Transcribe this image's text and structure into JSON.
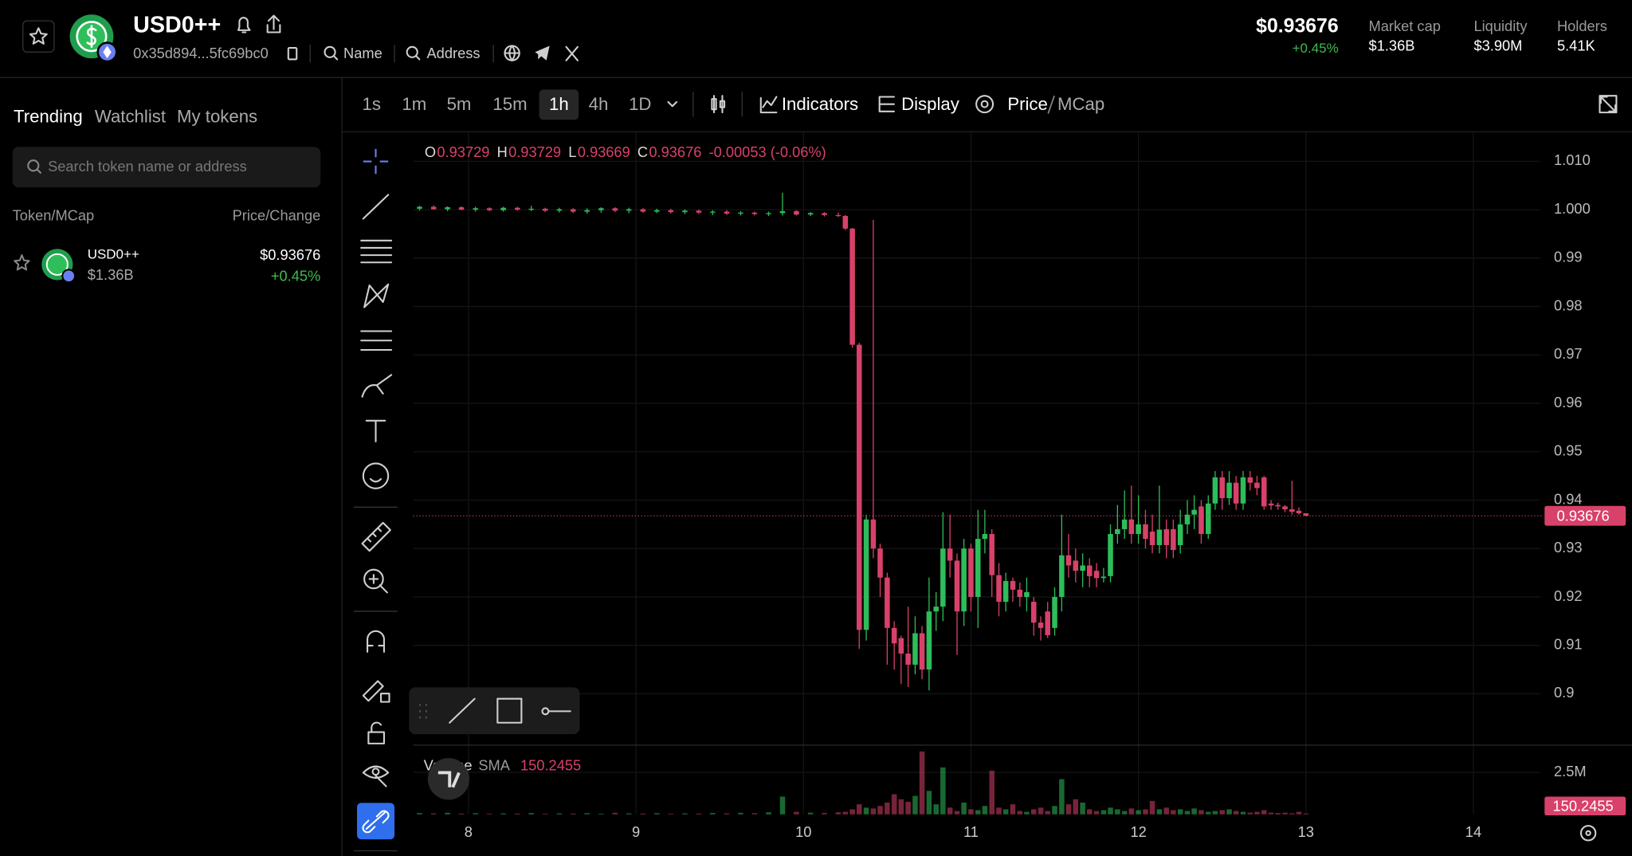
{
  "header": {
    "title": "USD0++",
    "address": "0x35d894...5fc69bc0",
    "links": [
      "Name",
      "Address"
    ],
    "price": "$0.93676",
    "change": "+0.45%",
    "stats": [
      {
        "label": "Market cap",
        "value": "$1.36B"
      },
      {
        "label": "Liquidity",
        "value": "$3.90M"
      },
      {
        "label": "Holders",
        "value": "5.41K"
      }
    ]
  },
  "sidebar": {
    "tabs": [
      "Trending",
      "Watchlist",
      "My tokens"
    ],
    "search_placeholder": "Search token name or address",
    "columns": [
      "Token/MCap",
      "Price/Change"
    ],
    "rows": [
      {
        "name": "USD0++",
        "mcap": "$1.36B",
        "price": "$0.93676",
        "change": "+0.45%"
      }
    ]
  },
  "toolbar": {
    "intervals": [
      "1s",
      "1m",
      "5m",
      "15m",
      "1h",
      "4h",
      "1D"
    ],
    "buttons": [
      "Indicators",
      "Display"
    ],
    "price_mode": [
      "Price",
      "MCap"
    ]
  },
  "chart_data": {
    "type": "candlestick",
    "up_color": "#2dbd5a",
    "down_color": "#d8416a",
    "grid": true,
    "xlim": [
      7.67,
      14.4
    ],
    "xticks": [
      8,
      9,
      10,
      11,
      12,
      13,
      14
    ],
    "ylim": [
      0.8895,
      1.016
    ],
    "yticks": [
      {
        "value": 1.01,
        "label": "1.010"
      },
      {
        "value": 1,
        "label": "1.000"
      },
      0.99,
      0.98,
      0.97,
      0.96,
      0.95,
      0.94,
      0.93,
      0.92,
      0.91,
      0.9
    ],
    "volume_ylim": [
      0,
      4100000
    ],
    "volume_yticks": [
      {
        "value": 2500000,
        "label": "2.5M"
      }
    ],
    "legend": {
      "labels": [
        "O",
        "H",
        "L",
        "C"
      ],
      "values": [
        0.93729,
        0.93729,
        0.93669,
        0.93676
      ],
      "change": "-0.00053 (-0.06%)"
    },
    "volume_legend": {
      "name": "Volume",
      "indicator": "SMA",
      "value": 150.2455
    },
    "last_price": 0.93676,
    "x": [
      7.708,
      7.792,
      7.875,
      7.958,
      8.042,
      8.125,
      8.208,
      8.292,
      8.375,
      8.458,
      8.542,
      8.625,
      8.708,
      8.792,
      8.875,
      8.958,
      9.042,
      9.125,
      9.208,
      9.292,
      9.375,
      9.458,
      9.542,
      9.625,
      9.708,
      9.792,
      9.875,
      9.958,
      10.042,
      10.125,
      10.208,
      10.25,
      10.292,
      10.333,
      10.375,
      10.417,
      10.458,
      10.5,
      10.542,
      10.583,
      10.625,
      10.667,
      10.708,
      10.75,
      10.792,
      10.833,
      10.875,
      10.917,
      10.958,
      11.0,
      11.042,
      11.083,
      11.125,
      11.167,
      11.208,
      11.25,
      11.292,
      11.333,
      11.375,
      11.417,
      11.458,
      11.5,
      11.542,
      11.583,
      11.625,
      11.667,
      11.708,
      11.75,
      11.792,
      11.833,
      11.875,
      11.917,
      11.958,
      12.0,
      12.042,
      12.083,
      12.125,
      12.167,
      12.208,
      12.25,
      12.292,
      12.333,
      12.375,
      12.417,
      12.458,
      12.5,
      12.542,
      12.583,
      12.625,
      12.667,
      12.708,
      12.75,
      12.792,
      12.833,
      12.875,
      12.917,
      12.958,
      13.0
    ],
    "open": [
      1.0002,
      1.0006,
      1.0001,
      1.0005,
      1.0,
      1.0003,
      0.9999,
      1.0004,
      1.0,
      1.0002,
      0.9998,
      1.0001,
      0.9996,
      0.9999,
      1.0003,
      0.9998,
      1.0001,
      0.9996,
      0.9999,
      0.9995,
      0.9998,
      0.9994,
      0.9996,
      0.9992,
      0.9994,
      0.9991,
      0.9993,
      0.9997,
      0.999,
      0.9993,
      0.9989,
      0.9987,
      0.9961,
      0.9721,
      0.9132,
      0.936,
      0.93,
      0.924,
      0.9136,
      0.9115,
      0.9083,
      0.906,
      0.9125,
      0.905,
      0.917,
      0.918,
      0.93,
      0.9275,
      0.917,
      0.93,
      0.92,
      0.932,
      0.933,
      0.9245,
      0.919,
      0.9233,
      0.9215,
      0.92,
      0.919,
      0.9147,
      0.917,
      0.9136,
      0.92,
      0.9286,
      0.9275,
      0.9254,
      0.9265,
      0.9254,
      0.9239,
      0.9243,
      0.933,
      0.934,
      0.936,
      0.933,
      0.935,
      0.9335,
      0.9307,
      0.934,
      0.934,
      0.9307,
      0.935,
      0.937,
      0.9387,
      0.933,
      0.9393,
      0.9447,
      0.9404,
      0.9436,
      0.9393,
      0.9447,
      0.9436,
      0.9447,
      0.9393,
      0.939,
      0.9387,
      0.9381,
      0.9378,
      0.93729
    ],
    "high": [
      1.0008,
      1.0009,
      1.0007,
      1.0007,
      1.0006,
      1.0005,
      1.0006,
      1.0006,
      1.0008,
      1.0004,
      1.0004,
      1.0003,
      1.0003,
      1.0005,
      1.0005,
      1.0004,
      1.0003,
      1.0002,
      1.0002,
      1.0001,
      1.0,
      0.9999,
      0.9999,
      0.9997,
      0.9996,
      0.9996,
      1.0035,
      0.9999,
      0.9995,
      0.9995,
      0.9994,
      0.9989,
      0.9962,
      0.9725,
      0.937,
      0.9979,
      0.931,
      0.925,
      0.915,
      0.912,
      0.918,
      0.916,
      0.914,
      0.924,
      0.921,
      0.9375,
      0.937,
      0.929,
      0.932,
      0.931,
      0.938,
      0.938,
      0.934,
      0.927,
      0.925,
      0.924,
      0.923,
      0.924,
      0.92,
      0.916,
      0.919,
      0.922,
      0.937,
      0.933,
      0.93,
      0.929,
      0.928,
      0.927,
      0.926,
      0.935,
      0.939,
      0.942,
      0.943,
      0.941,
      0.938,
      0.937,
      0.943,
      0.936,
      0.936,
      0.938,
      0.94,
      0.941,
      0.94,
      0.941,
      0.946,
      0.946,
      0.946,
      0.945,
      0.946,
      0.946,
      0.945,
      0.945,
      0.94,
      0.9395,
      0.939,
      0.944,
      0.9385,
      0.93729
    ],
    "low": [
      0.9998,
      1.0,
      0.9997,
      0.9999,
      0.9996,
      0.9997,
      0.9996,
      0.9998,
      0.9997,
      0.9995,
      0.9994,
      0.9993,
      0.9992,
      0.9994,
      0.9995,
      0.9993,
      0.9994,
      0.9993,
      0.9992,
      0.9991,
      0.9991,
      0.9989,
      0.9989,
      0.9988,
      0.9988,
      0.9987,
      0.9988,
      0.9988,
      0.9987,
      0.9986,
      0.9985,
      0.9958,
      0.9715,
      0.9093,
      0.911,
      0.928,
      0.92,
      0.906,
      0.905,
      0.902,
      0.9014,
      0.904,
      0.903,
      0.9007,
      0.913,
      0.915,
      0.924,
      0.908,
      0.914,
      0.917,
      0.9136,
      0.929,
      0.92,
      0.916,
      0.917,
      0.919,
      0.918,
      0.917,
      0.912,
      0.911,
      0.9115,
      0.912,
      0.917,
      0.924,
      0.923,
      0.922,
      0.922,
      0.922,
      0.923,
      0.923,
      0.931,
      0.932,
      0.931,
      0.931,
      0.93,
      0.929,
      0.929,
      0.928,
      0.928,
      0.929,
      0.933,
      0.934,
      0.931,
      0.932,
      0.938,
      0.938,
      0.939,
      0.938,
      0.938,
      0.942,
      0.941,
      0.938,
      0.938,
      0.938,
      0.9375,
      0.937,
      0.937,
      0.93669
    ],
    "close": [
      1.0006,
      1.0001,
      1.0005,
      1.0,
      1.0003,
      0.9999,
      1.0004,
      1.0,
      1.0002,
      0.9998,
      1.0001,
      0.9996,
      0.9999,
      1.0003,
      0.9998,
      1.0001,
      0.9996,
      0.9999,
      0.9995,
      0.9998,
      0.9994,
      0.9996,
      0.9992,
      0.9994,
      0.9991,
      0.9993,
      0.9997,
      0.999,
      0.9993,
      0.9989,
      0.9987,
      0.9961,
      0.9721,
      0.9132,
      0.936,
      0.93,
      0.924,
      0.9136,
      0.9104,
      0.9083,
      0.906,
      0.9125,
      0.905,
      0.917,
      0.918,
      0.93,
      0.9275,
      0.917,
      0.93,
      0.92,
      0.932,
      0.933,
      0.9245,
      0.919,
      0.9233,
      0.9215,
      0.92,
      0.921,
      0.9147,
      0.9136,
      0.9121,
      0.92,
      0.9286,
      0.9265,
      0.9254,
      0.9265,
      0.9243,
      0.9239,
      0.9242,
      0.933,
      0.934,
      0.936,
      0.933,
      0.935,
      0.932,
      0.9307,
      0.9339,
      0.9307,
      0.9297,
      0.935,
      0.937,
      0.938,
      0.933,
      0.9393,
      0.9447,
      0.9404,
      0.9436,
      0.9393,
      0.9447,
      0.9436,
      0.9425,
      0.9387,
      0.9389,
      0.9387,
      0.9381,
      0.9376,
      0.93729,
      0.93676
    ],
    "volume": [
      80000,
      60000,
      90000,
      50000,
      70000,
      40000,
      60000,
      50000,
      80000,
      40000,
      60000,
      50000,
      70000,
      40000,
      90000,
      60000,
      50000,
      70000,
      40000,
      60000,
      50000,
      80000,
      60000,
      90000,
      70000,
      120000,
      1060000,
      150000,
      100000,
      80000,
      120000,
      150000,
      300000,
      600000,
      400000,
      350000,
      500000,
      700000,
      1200000,
      900000,
      750000,
      1100000,
      3750000,
      1400000,
      600000,
      2800000,
      400000,
      200000,
      700000,
      300000,
      250000,
      500000,
      2600000,
      400000,
      300000,
      600000,
      200000,
      150000,
      300000,
      400000,
      200000,
      500000,
      2100000,
      600000,
      900000,
      700000,
      300000,
      200000,
      250000,
      400000,
      300000,
      200000,
      350000,
      250000,
      300000,
      800000,
      300000,
      400000,
      250000,
      300000,
      200000,
      350000,
      250000,
      150000,
      200000,
      250000,
      300000,
      200000,
      150000,
      100000,
      150000,
      250000,
      100000,
      80000,
      100000,
      60000,
      150000,
      50000
    ]
  }
}
